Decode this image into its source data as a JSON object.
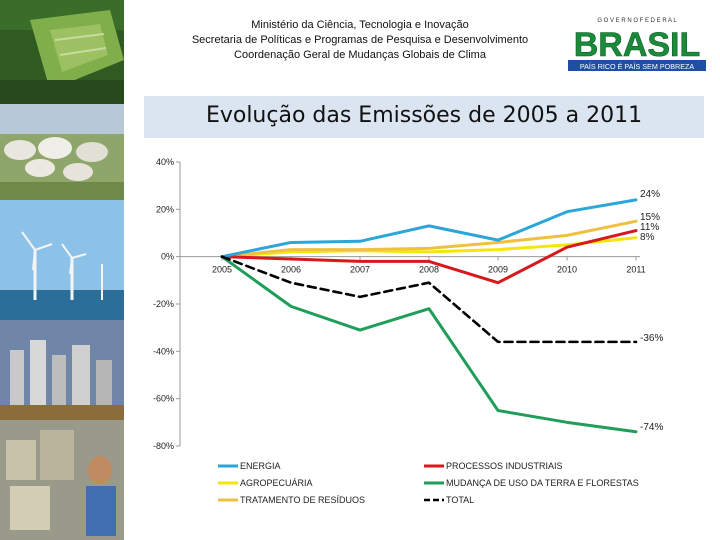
{
  "header": {
    "line1": "Ministério da Ciência, Tecnologia e Inovação",
    "line2": "Secretaria de Políticas e Programas de Pesquisa e Desenvolvimento",
    "line3": "Coordenação Geral de Mudanças Globais de Clima"
  },
  "logo": {
    "top": "G O V E R N O   F E D E R A L",
    "word": "BRASIL",
    "slogan": "PAÍS RICO É PAÍS SEM POBREZA"
  },
  "colors": {
    "title_bg": "#dbe5f1",
    "energia": "#2aa6d9",
    "processos": "#d7191c",
    "agro": "#f5e60a",
    "mudanca": "#1f9e5a",
    "residuos": "#f0c040",
    "total": "#000000"
  },
  "chart_data": {
    "type": "line",
    "title": "Evolução das Emissões de 2005 a 2011",
    "x": [
      "2005",
      "2006",
      "2007",
      "2008",
      "2009",
      "2010",
      "2011"
    ],
    "ylim": [
      -80,
      40
    ],
    "yticks": [
      40,
      20,
      0,
      -20,
      -40,
      -60,
      -80
    ],
    "ytick_labels": [
      "40%",
      "20%",
      "0%",
      "-20%",
      "-40%",
      "-60%",
      "-80%"
    ],
    "series": [
      {
        "key": "energia",
        "name": "ENERGIA",
        "color": "#2aa6d9",
        "dash": "",
        "values": [
          0,
          6,
          6.5,
          13,
          7,
          19,
          24
        ]
      },
      {
        "key": "processos",
        "name": "PROCESSOS INDUSTRIAIS",
        "color": "#d7191c",
        "dash": "",
        "values": [
          0,
          -1,
          -2,
          -2,
          -11,
          4,
          11
        ]
      },
      {
        "key": "agro",
        "name": "AGROPECUÁRIA",
        "color": "#f5e60a",
        "dash": "",
        "values": [
          0,
          2,
          2.5,
          2,
          3,
          5,
          8
        ]
      },
      {
        "key": "mudanca",
        "name": "MUDANÇA DE USO DA TERRA E FLORESTAS",
        "color": "#1f9e5a",
        "dash": "",
        "values": [
          0,
          -21,
          -31,
          -22,
          -65,
          -70,
          -74
        ]
      },
      {
        "key": "residuos",
        "name": "TRATAMENTO DE RESÍDUOS",
        "color": "#f0c040",
        "dash": "",
        "values": [
          0,
          3,
          3,
          3.5,
          6,
          9,
          15
        ]
      },
      {
        "key": "total",
        "name": "TOTAL",
        "color": "#000000",
        "dash": "8,5",
        "values": [
          0,
          -11,
          -17,
          -11,
          -36,
          -36,
          -36
        ]
      }
    ],
    "end_labels": [
      {
        "text": "24%",
        "value": 24
      },
      {
        "text": "15%",
        "value": 15
      },
      {
        "text": "11%",
        "value": 11
      },
      {
        "text": "8%",
        "value": 8
      },
      {
        "text": "-36%",
        "value": -36
      },
      {
        "text": "-74%",
        "value": -74
      }
    ],
    "legend": [
      {
        "key": "energia",
        "name": "ENERGIA"
      },
      {
        "key": "processos",
        "name": "PROCESSOS INDUSTRIAIS"
      },
      {
        "key": "agro",
        "name": "AGROPECUÁRIA"
      },
      {
        "key": "mudanca",
        "name": "MUDANÇA DE USO DA TERRA E FLORESTAS"
      },
      {
        "key": "residuos",
        "name": "TRATAMENTO DE RESÍDUOS"
      },
      {
        "key": "total",
        "name": "TOTAL"
      }
    ]
  }
}
